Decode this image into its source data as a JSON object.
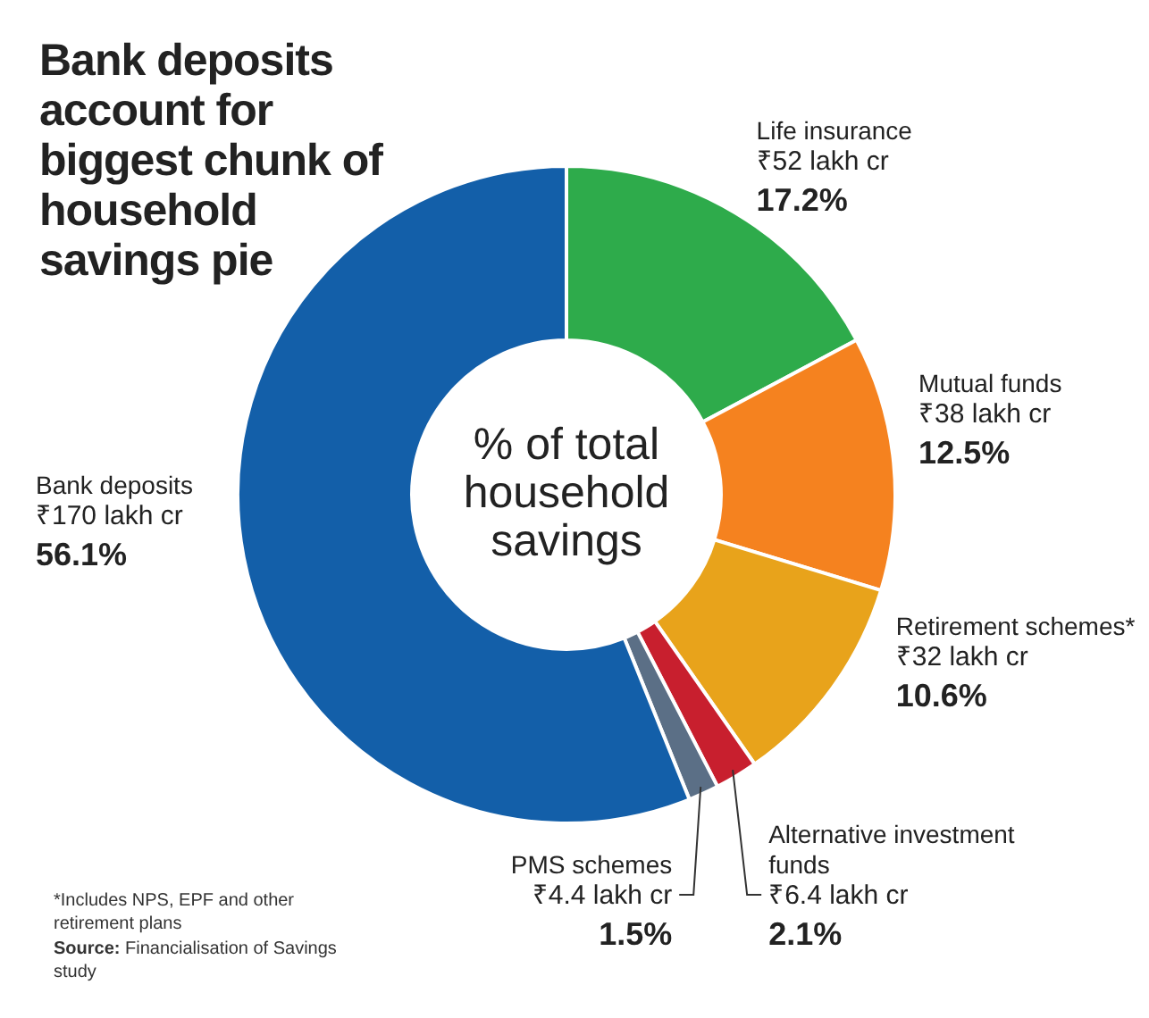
{
  "chart_data": {
    "type": "donut",
    "title": "Bank deposits account for biggest chunk of household savings pie",
    "subtitle": "% of total household savings",
    "categories": [
      "Life insurance",
      "Mutual funds",
      "Retirement schemes*",
      "Alternative investment funds",
      "PMS schemes",
      "Bank deposits"
    ],
    "values": [
      17.2,
      12.5,
      10.6,
      2.1,
      1.5,
      56.1
    ],
    "value_labels": [
      "17.2%",
      "12.5%",
      "10.6%",
      "2.1%",
      "1.5%",
      "56.1%"
    ],
    "colors": [
      "#2eab4b",
      "#f5821f",
      "#e8a31b",
      "#c81f2e",
      "#5b6f86",
      "#135fa9"
    ],
    "annotations": [
      {
        "text": "₹52 lakh cr",
        "x": "Life insurance"
      },
      {
        "text": "₹38 lakh cr",
        "x": "Mutual funds"
      },
      {
        "text": "₹32 lakh cr",
        "x": "Retirement schemes*"
      },
      {
        "text": "₹6.4 lakh cr",
        "x": "Alternative investment funds"
      },
      {
        "text": "₹4.4 lakh cr",
        "x": "PMS schemes"
      },
      {
        "text": "₹170 lakh cr",
        "x": "Bank deposits"
      },
      "*Includes NPS, EPF and other retirement plans",
      "Source: Financialisation of Savings study"
    ],
    "legend": false
  }
}
